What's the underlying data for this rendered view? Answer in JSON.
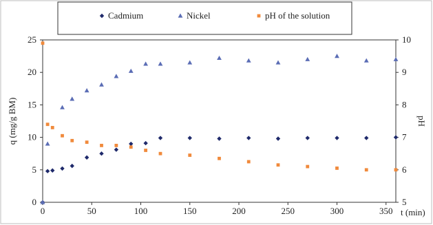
{
  "chart_data": {
    "type": "scatter",
    "title": "",
    "xlabel": "t (min)",
    "ylabel": "q (mg/g BM)",
    "y2label": "pH",
    "xlim": [
      0,
      360
    ],
    "ylim": [
      0,
      25
    ],
    "y2lim": [
      5,
      10
    ],
    "x_ticks": [
      0,
      50,
      100,
      150,
      200,
      250,
      300,
      350
    ],
    "y_ticks": [
      0,
      5,
      10,
      15,
      20,
      25
    ],
    "y2_ticks": [
      5,
      6,
      7,
      8,
      9,
      10
    ],
    "grid": false,
    "legend_position": "top",
    "series": [
      {
        "name": "Cadmium",
        "axis": "left",
        "marker": "diamond",
        "color": "#1f2a6b",
        "x": [
          0,
          5,
          10,
          20,
          30,
          45,
          60,
          75,
          90,
          105,
          120,
          150,
          180,
          210,
          240,
          270,
          300,
          330,
          360
        ],
        "y": [
          0,
          4.8,
          4.9,
          5.2,
          5.6,
          6.9,
          7.5,
          8.1,
          9.0,
          9.1,
          9.9,
          9.9,
          9.8,
          9.9,
          9.8,
          9.9,
          9.9,
          9.9,
          10.0
        ]
      },
      {
        "name": "Nickel",
        "axis": "left",
        "marker": "triangle",
        "color": "#5b6db5",
        "x": [
          0,
          5,
          20,
          30,
          45,
          60,
          75,
          90,
          105,
          120,
          150,
          180,
          210,
          240,
          270,
          300,
          330,
          360
        ],
        "y": [
          0,
          9.0,
          14.6,
          15.9,
          17.2,
          18.1,
          19.4,
          20.2,
          21.3,
          21.3,
          21.5,
          22.2,
          21.8,
          21.5,
          22.0,
          22.5,
          21.8,
          22.0
        ]
      },
      {
        "name": "pH of the solution",
        "axis": "right",
        "marker": "square",
        "color": "#f08a3c",
        "x": [
          0,
          5,
          10,
          20,
          30,
          45,
          60,
          75,
          90,
          105,
          120,
          150,
          180,
          210,
          240,
          270,
          300,
          330,
          360
        ],
        "y": [
          9.9,
          7.4,
          7.3,
          7.05,
          6.9,
          6.85,
          6.75,
          6.75,
          6.7,
          6.6,
          6.5,
          6.45,
          6.35,
          6.25,
          6.15,
          6.1,
          6.05,
          6.0,
          6.0
        ]
      }
    ]
  }
}
